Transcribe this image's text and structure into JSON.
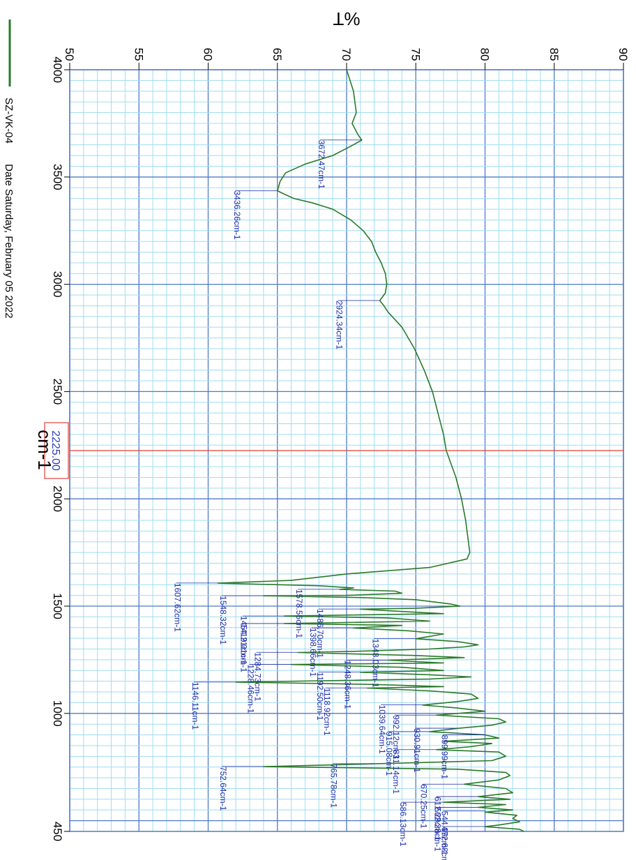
{
  "chart_data": {
    "type": "line",
    "orientation": "rotated-90",
    "ylabel": "%T",
    "xlabel": "cm-1",
    "y_ticks": [
      "50",
      "55",
      "60",
      "65",
      "70",
      "75",
      "80",
      "85",
      "90"
    ],
    "x_ticks": [
      "4000",
      "3500",
      "3000",
      "2500",
      "2000",
      "1500",
      "1000",
      "450"
    ],
    "xlim": [
      4000,
      450
    ],
    "ylim": [
      50,
      90
    ],
    "grid": true,
    "colors": {
      "series": "#2a7a2a",
      "grid_major": "#4d7bc4",
      "grid_minor": "#9fdcf2",
      "annotation": "#1c2aa8",
      "cursor": "#e0403a"
    },
    "cursor": {
      "x": 2225.0,
      "label": "2225.00"
    },
    "legend": [
      {
        "name": "SZ-VK-04",
        "color": "#2a7a2a"
      }
    ],
    "date_text": "Date Saturday, February 05 2022",
    "series": [
      {
        "name": "SZ-VK-04",
        "points": [
          [
            4000,
            70.0
          ],
          [
            3900,
            70.5
          ],
          [
            3800,
            70.7
          ],
          [
            3750,
            70.4
          ],
          [
            3700,
            70.8
          ],
          [
            3672,
            71.1
          ],
          [
            3640,
            70.2
          ],
          [
            3600,
            69.0
          ],
          [
            3560,
            67.0
          ],
          [
            3520,
            65.6
          ],
          [
            3480,
            65.2
          ],
          [
            3436,
            65.0
          ],
          [
            3420,
            65.5
          ],
          [
            3400,
            66.2
          ],
          [
            3380,
            67.5
          ],
          [
            3350,
            69.0
          ],
          [
            3300,
            70.3
          ],
          [
            3250,
            71.2
          ],
          [
            3200,
            71.8
          ],
          [
            3150,
            72.1
          ],
          [
            3100,
            72.5
          ],
          [
            3050,
            72.8
          ],
          [
            3000,
            72.9
          ],
          [
            2960,
            72.8
          ],
          [
            2924,
            72.4
          ],
          [
            2900,
            72.7
          ],
          [
            2870,
            73.0
          ],
          [
            2800,
            74.0
          ],
          [
            2700,
            74.9
          ],
          [
            2600,
            75.6
          ],
          [
            2500,
            76.2
          ],
          [
            2400,
            76.6
          ],
          [
            2300,
            77.0
          ],
          [
            2225,
            77.2
          ],
          [
            2100,
            77.9
          ],
          [
            2000,
            78.3
          ],
          [
            1900,
            78.6
          ],
          [
            1800,
            78.8
          ],
          [
            1750,
            78.9
          ],
          [
            1720,
            78.7
          ],
          [
            1680,
            76.0
          ],
          [
            1650,
            70.0
          ],
          [
            1620,
            66.0
          ],
          [
            1607,
            60.7
          ],
          [
            1595,
            68.0
          ],
          [
            1585,
            70.5
          ],
          [
            1578,
            69.5
          ],
          [
            1570,
            73.5
          ],
          [
            1560,
            74.0
          ],
          [
            1550,
            70.0
          ],
          [
            1548,
            64.0
          ],
          [
            1540,
            71.0
          ],
          [
            1530,
            75.0
          ],
          [
            1510,
            77.5
          ],
          [
            1500,
            78.2
          ],
          [
            1490,
            75.0
          ],
          [
            1486,
            71.0
          ],
          [
            1475,
            74.0
          ],
          [
            1465,
            77.0
          ],
          [
            1454,
            65.5
          ],
          [
            1445,
            73.0
          ],
          [
            1430,
            76.0
          ],
          [
            1419,
            65.5
          ],
          [
            1410,
            74.0
          ],
          [
            1398,
            70.5
          ],
          [
            1385,
            74.5
          ],
          [
            1370,
            77.0
          ],
          [
            1348,
            75.0
          ],
          [
            1335,
            78.0
          ],
          [
            1320,
            79.5
          ],
          [
            1310,
            78.5
          ],
          [
            1300,
            76.0
          ],
          [
            1290,
            71.0
          ],
          [
            1284,
            66.5
          ],
          [
            1270,
            75.0
          ],
          [
            1260,
            78.5
          ],
          [
            1248,
            73.0
          ],
          [
            1235,
            77.0
          ],
          [
            1228,
            66.0
          ],
          [
            1215,
            74.0
          ],
          [
            1200,
            77.0
          ],
          [
            1192,
            71.0
          ],
          [
            1180,
            76.0
          ],
          [
            1170,
            79.0
          ],
          [
            1160,
            76.0
          ],
          [
            1146,
            62.0
          ],
          [
            1135,
            72.0
          ],
          [
            1125,
            77.0
          ],
          [
            1118,
            71.5
          ],
          [
            1105,
            76.0
          ],
          [
            1090,
            79.0
          ],
          [
            1070,
            79.5
          ],
          [
            1055,
            78.0
          ],
          [
            1039,
            75.5
          ],
          [
            1025,
            78.0
          ],
          [
            1010,
            80.0
          ],
          [
            992,
            76.5
          ],
          [
            975,
            81.0
          ],
          [
            960,
            81.5
          ],
          [
            945,
            80.5
          ],
          [
            930,
            78.0
          ],
          [
            915,
            76.0
          ],
          [
            900,
            80.0
          ],
          [
            885,
            81.0
          ],
          [
            870,
            77.0
          ],
          [
            860,
            80.5
          ],
          [
            845,
            79.0
          ],
          [
            831,
            76.5
          ],
          [
            820,
            81.0
          ],
          [
            800,
            81.5
          ],
          [
            780,
            80.5
          ],
          [
            765,
            72.0
          ],
          [
            752,
            64.0
          ],
          [
            740,
            78.0
          ],
          [
            725,
            81.5
          ],
          [
            710,
            81.8
          ],
          [
            690,
            81.0
          ],
          [
            670,
            78.5
          ],
          [
            650,
            81.5
          ],
          [
            630,
            82.0
          ],
          [
            612,
            79.5
          ],
          [
            600,
            81.8
          ],
          [
            586,
            77.0
          ],
          [
            575,
            81.5
          ],
          [
            562,
            79.5
          ],
          [
            550,
            82.0
          ],
          [
            540,
            80.0
          ],
          [
            525,
            82.3
          ],
          [
            510,
            82.0
          ],
          [
            495,
            82.5
          ],
          [
            480,
            81.0
          ],
          [
            472,
            80.0
          ],
          [
            460,
            82.5
          ],
          [
            450,
            82.8
          ]
        ]
      }
    ],
    "annotations": [
      {
        "label": "3672.47cm-1",
        "x": 3672.47,
        "y": 71.1
      },
      {
        "label": "3436.26cm-1",
        "x": 3436.26,
        "y": 65.0
      },
      {
        "label": "2924.34cm-1",
        "x": 2924.34,
        "y": 72.4
      },
      {
        "label": "1607.62cm-1",
        "x": 1607.62,
        "y": 60.7
      },
      {
        "label": "1578.56cm-1",
        "x": 1578.56,
        "y": 69.5
      },
      {
        "label": "1548.32cm-1",
        "x": 1548.32,
        "y": 64.0
      },
      {
        "label": "1486.70cm-1",
        "x": 1486.7,
        "y": 71.0
      },
      {
        "label": "1454.21cm-1",
        "x": 1454.21,
        "y": 65.5
      },
      {
        "label": "1419.01cm-1",
        "x": 1419.01,
        "y": 65.5
      },
      {
        "label": "1398.66cm-1",
        "x": 1398.66,
        "y": 70.5
      },
      {
        "label": "1348.03cm-1",
        "x": 1348.03,
        "y": 75.0
      },
      {
        "label": "1284.73cm-1",
        "x": 1284.73,
        "y": 66.5
      },
      {
        "label": "1248.36cm-1",
        "x": 1248.36,
        "y": 73.0
      },
      {
        "label": "1228.46cm-1",
        "x": 1228.46,
        "y": 66.0
      },
      {
        "label": "1192.50cm-1",
        "x": 1192.5,
        "y": 71.0
      },
      {
        "label": "1146.11cm-1",
        "x": 1146.11,
        "y": 62.0
      },
      {
        "label": "1118.92cm-1",
        "x": 1118.92,
        "y": 71.5
      },
      {
        "label": "1039.64cm-1",
        "x": 1039.64,
        "y": 75.5
      },
      {
        "label": "992.12cm-1",
        "x": 992.12,
        "y": 76.5
      },
      {
        "label": "930.91cm-1",
        "x": 930.91,
        "y": 78.0
      },
      {
        "label": "915.08cm-1",
        "x": 915.08,
        "y": 76.0
      },
      {
        "label": "899.99cm-1",
        "x": 899.99,
        "y": 80.0
      },
      {
        "label": "831.14cm-1",
        "x": 831.14,
        "y": 76.5
      },
      {
        "label": "765.78cm-1",
        "x": 765.78,
        "y": 72.0
      },
      {
        "label": "752.64cm-1",
        "x": 752.64,
        "y": 64.0
      },
      {
        "label": "670.25cm-1",
        "x": 670.25,
        "y": 78.5
      },
      {
        "label": "612.29cm-1",
        "x": 612.29,
        "y": 79.5
      },
      {
        "label": "586.13cm-1",
        "x": 586.13,
        "y": 77.0
      },
      {
        "label": "562.28cm-1",
        "x": 562.28,
        "y": 79.5
      },
      {
        "label": "544.99cm-1",
        "x": 544.99,
        "y": 80.0
      },
      {
        "label": "472.68cm-1",
        "x": 472.68,
        "y": 80.0
      }
    ]
  }
}
